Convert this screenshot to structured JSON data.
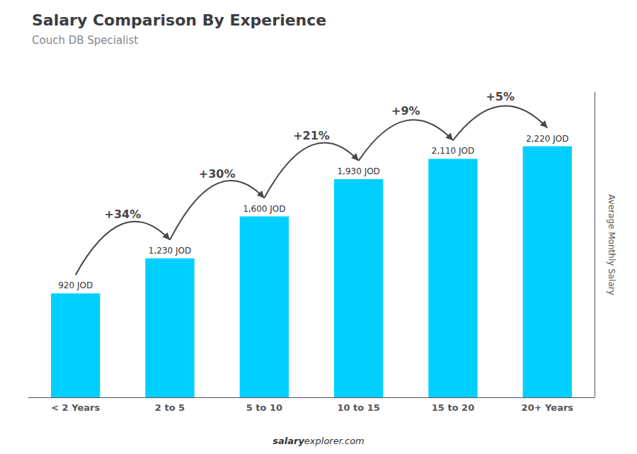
{
  "chart_data": {
    "type": "bar",
    "title": "Salary Comparison By Experience",
    "subtitle": "Couch DB Specialist",
    "ylabel": "Average Monthly Salary",
    "categories": [
      "< 2 Years",
      "2 to 5",
      "5 to 10",
      "10 to 15",
      "15 to 20",
      "20+ Years"
    ],
    "values": [
      920,
      1230,
      1600,
      1930,
      2110,
      2220
    ],
    "value_labels": [
      "920 JOD",
      "1,230 JOD",
      "1,600 JOD",
      "1,930 JOD",
      "2,110 JOD",
      "2,220 JOD"
    ],
    "data_labels": true,
    "color": "#00CFFF",
    "ylim": [
      0,
      2700
    ],
    "grid": false,
    "tick_labels": "x",
    "annotations": [
      {
        "text": "+34%",
        "from": "< 2 Years",
        "to": "2 to 5"
      },
      {
        "text": "+30%",
        "from": "2 to 5",
        "to": "5 to 10"
      },
      {
        "text": "+21%",
        "from": "5 to 10",
        "to": "10 to 15"
      },
      {
        "text": "+9%",
        "from": "10 to 15",
        "to": "15 to 20"
      },
      {
        "text": "+5%",
        "from": "15 to 20",
        "to": "20+ Years"
      }
    ],
    "watermark": [
      "salary",
      "explorer.com"
    ]
  }
}
